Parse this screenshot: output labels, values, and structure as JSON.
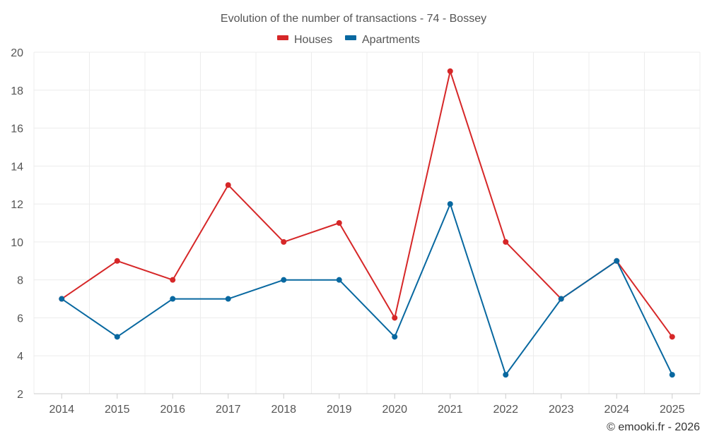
{
  "chart_data": {
    "type": "line",
    "title": "Evolution of the number of transactions - 74 - Bossey",
    "categories": [
      "2014",
      "2015",
      "2016",
      "2017",
      "2018",
      "2019",
      "2020",
      "2021",
      "2022",
      "2023",
      "2024",
      "2025"
    ],
    "series": [
      {
        "name": "Houses",
        "color": "#d62728",
        "values": [
          7,
          9,
          8,
          13,
          10,
          11,
          6,
          19,
          10,
          7,
          9,
          5
        ]
      },
      {
        "name": "Apartments",
        "color": "#0868a0",
        "values": [
          7,
          5,
          7,
          7,
          8,
          8,
          5,
          12,
          3,
          7,
          9,
          3
        ]
      }
    ],
    "ylim": [
      2,
      20
    ],
    "yticks": [
      2,
      4,
      6,
      8,
      10,
      12,
      14,
      16,
      18,
      20
    ],
    "xlabel": "",
    "ylabel": "",
    "grid": true,
    "legend": "top-center"
  },
  "credit": "© emooki.fr - 2026"
}
